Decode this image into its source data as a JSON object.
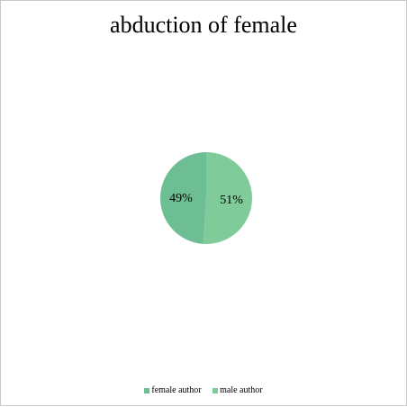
{
  "chart_data": {
    "type": "pie",
    "title": "abduction of female",
    "categories": [
      "female author",
      "male author"
    ],
    "values": [
      49,
      51
    ],
    "labels": [
      "49%",
      "51%"
    ],
    "colors": [
      "#6dbf93",
      "#7fcc9a"
    ],
    "legend_position": "bottom"
  }
}
